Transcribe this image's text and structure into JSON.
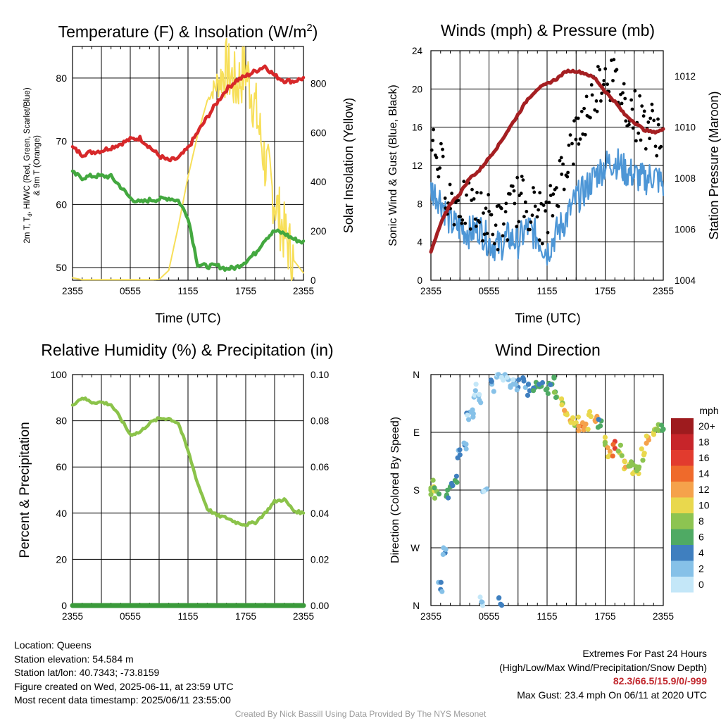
{
  "panels": {
    "temperature": {
      "title": "Temperature (F) & Insolation (W/m",
      "title_sup": "2",
      "title_end": ")",
      "ylabel_line1": "2m T, T",
      "ylabel_sub": "d",
      "ylabel_line1b": ", HI/WC (Red, Green, Scarlet/Blue)",
      "ylabel_line2": "& 9m T (Orange)",
      "ylabel_right": "Solar Insolation (Yellow)",
      "xlabel": "Time (UTC)"
    },
    "winds": {
      "title": "Winds (mph) & Pressure (mb)",
      "ylabel": "Sonic Wind & Gust (Blue, Black)",
      "ylabel_right": "Station Pressure (Maroon)",
      "xlabel": "Time (UTC)"
    },
    "humidity": {
      "title": "Relative Humidity (%) & Precipitation (in)",
      "ylabel": "Percent & Precipitation"
    },
    "direction": {
      "title": "Wind Direction",
      "ylabel": "Direction (Colored By Speed)"
    }
  },
  "x_ticks": [
    "2355",
    "0555",
    "1155",
    "1755",
    "2355"
  ],
  "legend": {
    "title": "mph",
    "labels": [
      "20+",
      "18",
      "16",
      "14",
      "12",
      "10",
      "8",
      "6",
      "4",
      "2",
      "0"
    ],
    "colors": [
      "#9e1b1e",
      "#c7252a",
      "#e23b2e",
      "#ef6a2b",
      "#f5a24b",
      "#e9d84d",
      "#8dc451",
      "#4faa64",
      "#3f7fbf",
      "#86c1e8",
      "#c4e7f8"
    ]
  },
  "colors": {
    "temperature": "#d7282a",
    "dewpoint": "#43a83f",
    "insolation": "#f7df59",
    "wind": "#4d96d6",
    "gust": "#000000",
    "pressure": "#a51f22",
    "rh": "#8bc34a",
    "precip": "#3a9a3a"
  },
  "footer": {
    "location": "Location: Queens",
    "elevation": "Station elevation: 54.584 m",
    "latlon": "Station lat/lon: 40.7343; -73.8159",
    "created": "Figure created on Wed, 2025-06-11, at 23:59 UTC",
    "recent": "Most recent data timestamp: 2025/06/11 23:55:00",
    "extremes_title": "Extremes For Past 24 Hours",
    "extremes_desc": "(High/Low/Max Wind/Precipitation/Snow Depth)",
    "extremes_values": "82.3/66.5/15.9/0/-999",
    "max_gust": "Max Gust: 23.4 mph On 06/11 at 2020 UTC",
    "credit": "Created By Nick Bassill Using Data Provided By The NYS Mesonet"
  },
  "chart_data": [
    {
      "type": "line",
      "title": "Temperature (F) & Insolation (W/m2)",
      "xlabel": "Time (UTC)",
      "ylabel": "2m T, Td, HI/WC (Red, Green, Scarlet/Blue) & 9m T (Orange)",
      "ylabel_right": "Solar Insolation (Yellow)",
      "x_ticks": [
        "2355",
        "0555",
        "1155",
        "1755",
        "2355"
      ],
      "x_hours": [
        0,
        1,
        2,
        3,
        4,
        5,
        6,
        7,
        8,
        9,
        10,
        11,
        12,
        13,
        14,
        15,
        16,
        17,
        18,
        19,
        20,
        21,
        22,
        23,
        24
      ],
      "ylim": [
        48,
        85
      ],
      "ylim_right": [
        0,
        950
      ],
      "series": [
        {
          "name": "2m T",
          "axis": "left",
          "values": [
            69.0,
            67.9,
            68.3,
            68.5,
            69.0,
            69.6,
            70.3,
            70.5,
            69.1,
            67.7,
            66.9,
            67.3,
            68.9,
            71.4,
            73.8,
            76.1,
            78.2,
            79.6,
            80.3,
            81.1,
            81.9,
            80.4,
            79.6,
            79.5,
            80.0
          ]
        },
        {
          "name": "2m Td",
          "axis": "left",
          "values": [
            65.0,
            64.2,
            64.5,
            64.5,
            64.4,
            62.8,
            61.0,
            60.3,
            60.7,
            60.8,
            61.0,
            60.6,
            58.0,
            50.5,
            50.2,
            50.3,
            49.8,
            50.0,
            51.0,
            52.3,
            54.5,
            55.8,
            55.4,
            54.5,
            54.0
          ]
        },
        {
          "name": "Solar Insolation",
          "axis": "right",
          "values": [
            10,
            2,
            2,
            2,
            2,
            2,
            2,
            2,
            2,
            3,
            40,
            220,
            420,
            590,
            730,
            800,
            860,
            790,
            860,
            700,
            480,
            330,
            190,
            80,
            30
          ]
        }
      ]
    },
    {
      "type": "line",
      "title": "Winds (mph) & Pressure (mb)",
      "xlabel": "Time (UTC)",
      "ylabel": "Sonic Wind & Gust (Blue, Black)",
      "ylabel_right": "Station Pressure (Maroon)",
      "x_ticks": [
        "2355",
        "0555",
        "1155",
        "1755",
        "2355"
      ],
      "x_hours": [
        0,
        1,
        2,
        3,
        4,
        5,
        6,
        7,
        8,
        9,
        10,
        11,
        12,
        13,
        14,
        15,
        16,
        17,
        18,
        19,
        20,
        21,
        22,
        23,
        24
      ],
      "ylim": [
        0,
        24
      ],
      "ylim_right": [
        1004,
        1013
      ],
      "series": [
        {
          "name": "Sonic Wind",
          "axis": "left",
          "values": [
            9.5,
            8.5,
            6.0,
            5.5,
            5.0,
            5.5,
            4.0,
            3.5,
            4.5,
            4.0,
            5.5,
            4.5,
            3.0,
            5.0,
            6.5,
            8.5,
            9.5,
            11.0,
            12.0,
            12.5,
            11.5,
            11.0,
            10.5,
            11.0,
            10.0
          ]
        },
        {
          "name": "Gust",
          "axis": "left",
          "values": [
            15.0,
            12.0,
            8.5,
            8.0,
            7.5,
            7.0,
            6.5,
            5.5,
            7.0,
            8.5,
            8.0,
            7.0,
            6.0,
            10.0,
            12.5,
            15.0,
            17.5,
            20.0,
            22.0,
            20.5,
            19.0,
            17.5,
            16.5,
            16.0,
            15.0
          ]
        },
        {
          "name": "Station Pressure",
          "axis": "right",
          "values": [
            1005.1,
            1006.2,
            1007.0,
            1007.4,
            1008.0,
            1008.3,
            1008.8,
            1009.3,
            1009.9,
            1010.5,
            1011.1,
            1011.5,
            1011.7,
            1011.9,
            1012.2,
            1012.2,
            1012.1,
            1011.9,
            1011.4,
            1011.0,
            1010.5,
            1010.2,
            1009.9,
            1009.8,
            1009.9
          ]
        }
      ]
    },
    {
      "type": "line",
      "title": "Relative Humidity (%) & Precipitation (in)",
      "ylabel": "Percent & Precipitation",
      "x_ticks": [
        "2355",
        "0555",
        "1155",
        "1755",
        "2355"
      ],
      "x_hours": [
        0,
        1,
        2,
        3,
        4,
        5,
        6,
        7,
        8,
        9,
        10,
        11,
        12,
        13,
        14,
        15,
        16,
        17,
        18,
        19,
        20,
        21,
        22,
        23,
        24
      ],
      "ylim": [
        0,
        100
      ],
      "ylim_right": [
        0,
        0.1
      ],
      "series": [
        {
          "name": "Relative Humidity",
          "axis": "left",
          "values": [
            87,
            90,
            88,
            88,
            87,
            81,
            74,
            75,
            79,
            81,
            81,
            79,
            67,
            53,
            42,
            39,
            38,
            36,
            35,
            36,
            40,
            45,
            46,
            41,
            40
          ]
        },
        {
          "name": "Precipitation",
          "axis": "right",
          "values": [
            0,
            0,
            0,
            0,
            0,
            0,
            0,
            0,
            0,
            0,
            0,
            0,
            0,
            0,
            0,
            0,
            0,
            0,
            0,
            0,
            0,
            0,
            0,
            0,
            0
          ]
        }
      ]
    },
    {
      "type": "scatter",
      "title": "Wind Direction",
      "ylabel": "Direction (Colored By Speed)",
      "x_ticks": [
        "2355",
        "0555",
        "1155",
        "1755",
        "2355"
      ],
      "y_ticks": [
        "N",
        "W",
        "S",
        "E",
        "N"
      ],
      "ylim_degrees": [
        0,
        360
      ],
      "color_legend_title": "mph",
      "points": [
        {
          "hour": 0.0,
          "dir_deg": 180,
          "speed": 9
        },
        {
          "hour": 0.3,
          "dir_deg": 185,
          "speed": 10
        },
        {
          "hour": 0.6,
          "dir_deg": 178,
          "speed": 8
        },
        {
          "hour": 1.0,
          "dir_deg": 25,
          "speed": 4
        },
        {
          "hour": 1.3,
          "dir_deg": 90,
          "speed": 3
        },
        {
          "hour": 1.6,
          "dir_deg": 170,
          "speed": 6
        },
        {
          "hour": 2.0,
          "dir_deg": 185,
          "speed": 6
        },
        {
          "hour": 2.5,
          "dir_deg": 195,
          "speed": 6
        },
        {
          "hour": 3.0,
          "dir_deg": 235,
          "speed": 4
        },
        {
          "hour": 3.5,
          "dir_deg": 250,
          "speed": 4
        },
        {
          "hour": 3.9,
          "dir_deg": 290,
          "speed": 3
        },
        {
          "hour": 4.3,
          "dir_deg": 305,
          "speed": 3
        },
        {
          "hour": 4.6,
          "dir_deg": 335,
          "speed": 2
        },
        {
          "hour": 5.0,
          "dir_deg": 320,
          "speed": 2
        },
        {
          "hour": 5.3,
          "dir_deg": 5,
          "speed": 2
        },
        {
          "hour": 5.6,
          "dir_deg": 180,
          "speed": 2
        },
        {
          "hour": 6.3,
          "dir_deg": 345,
          "speed": 3
        },
        {
          "hour": 6.8,
          "dir_deg": 356,
          "speed": 3
        },
        {
          "hour": 7.2,
          "dir_deg": 2,
          "speed": 4
        },
        {
          "hour": 7.5,
          "dir_deg": 358,
          "speed": 3
        },
        {
          "hour": 8.0,
          "dir_deg": 352,
          "speed": 2
        },
        {
          "hour": 8.5,
          "dir_deg": 345,
          "speed": 3
        },
        {
          "hour": 9.0,
          "dir_deg": 340,
          "speed": 4
        },
        {
          "hour": 9.6,
          "dir_deg": 350,
          "speed": 5
        },
        {
          "hour": 10.2,
          "dir_deg": 335,
          "speed": 5
        },
        {
          "hour": 10.8,
          "dir_deg": 340,
          "speed": 6
        },
        {
          "hour": 11.4,
          "dir_deg": 342,
          "speed": 6
        },
        {
          "hour": 12.0,
          "dir_deg": 338,
          "speed": 7
        },
        {
          "hour": 12.5,
          "dir_deg": 345,
          "speed": 6
        },
        {
          "hour": 13.0,
          "dir_deg": 325,
          "speed": 9
        },
        {
          "hour": 13.5,
          "dir_deg": 322,
          "speed": 10
        },
        {
          "hour": 14.0,
          "dir_deg": 300,
          "speed": 11
        },
        {
          "hour": 14.5,
          "dir_deg": 288,
          "speed": 12
        },
        {
          "hour": 15.0,
          "dir_deg": 285,
          "speed": 11
        },
        {
          "hour": 15.5,
          "dir_deg": 280,
          "speed": 14
        },
        {
          "hour": 16.0,
          "dir_deg": 283,
          "speed": 12
        },
        {
          "hour": 16.5,
          "dir_deg": 295,
          "speed": 11
        },
        {
          "hour": 17.0,
          "dir_deg": 287,
          "speed": 13
        },
        {
          "hour": 17.5,
          "dir_deg": 280,
          "speed": 7
        },
        {
          "hour": 18.0,
          "dir_deg": 255,
          "speed": 10
        },
        {
          "hour": 18.5,
          "dir_deg": 240,
          "speed": 12
        },
        {
          "hour": 19.0,
          "dir_deg": 245,
          "speed": 16
        },
        {
          "hour": 19.5,
          "dir_deg": 238,
          "speed": 10
        },
        {
          "hour": 20.0,
          "dir_deg": 225,
          "speed": 12
        },
        {
          "hour": 20.5,
          "dir_deg": 220,
          "speed": 10
        },
        {
          "hour": 21.0,
          "dir_deg": 208,
          "speed": 11
        },
        {
          "hour": 21.5,
          "dir_deg": 216,
          "speed": 9
        },
        {
          "hour": 22.0,
          "dir_deg": 235,
          "speed": 11
        },
        {
          "hour": 22.5,
          "dir_deg": 258,
          "speed": 12
        },
        {
          "hour": 23.0,
          "dir_deg": 270,
          "speed": 10
        },
        {
          "hour": 23.5,
          "dir_deg": 282,
          "speed": 8
        },
        {
          "hour": 24.0,
          "dir_deg": 275,
          "speed": 7
        }
      ]
    }
  ]
}
